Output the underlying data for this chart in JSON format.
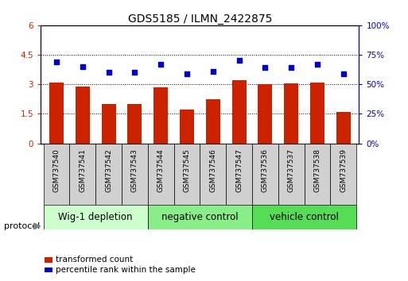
{
  "title": "GDS5185 / ILMN_2422875",
  "samples": [
    "GSM737540",
    "GSM737541",
    "GSM737542",
    "GSM737543",
    "GSM737544",
    "GSM737545",
    "GSM737546",
    "GSM737547",
    "GSM737536",
    "GSM737537",
    "GSM737538",
    "GSM737539"
  ],
  "bar_values": [
    3.1,
    2.9,
    2.0,
    2.0,
    2.85,
    1.7,
    2.25,
    3.2,
    3.0,
    3.05,
    3.1,
    1.6
  ],
  "dot_values": [
    69,
    65,
    60,
    60,
    67,
    59,
    61,
    70,
    64,
    64,
    67,
    59
  ],
  "bar_color": "#cc2200",
  "dot_color": "#0000cc",
  "ylim_left": [
    0,
    6
  ],
  "ylim_right": [
    0,
    100
  ],
  "yticks_left": [
    0,
    1.5,
    3.0,
    4.5,
    6
  ],
  "yticks_right": [
    0,
    25,
    50,
    75,
    100
  ],
  "ytick_labels_left": [
    "0",
    "1.5",
    "3",
    "4.5",
    "6"
  ],
  "ytick_labels_right": [
    "0%",
    "25%",
    "50%",
    "75%",
    "100%"
  ],
  "groups": [
    {
      "label": "Wig-1 depletion",
      "start": 0,
      "end": 4,
      "color": "#ccffcc"
    },
    {
      "label": "negative control",
      "start": 4,
      "end": 8,
      "color": "#88ee88"
    },
    {
      "label": "vehicle control",
      "start": 8,
      "end": 12,
      "color": "#55dd55"
    }
  ],
  "protocol_label": "protocol",
  "legend_bar_label": "transformed count",
  "legend_dot_label": "percentile rank within the sample",
  "title_fontsize": 10,
  "tick_fontsize": 7.5,
  "sample_fontsize": 6.5,
  "group_fontsize": 8.5
}
